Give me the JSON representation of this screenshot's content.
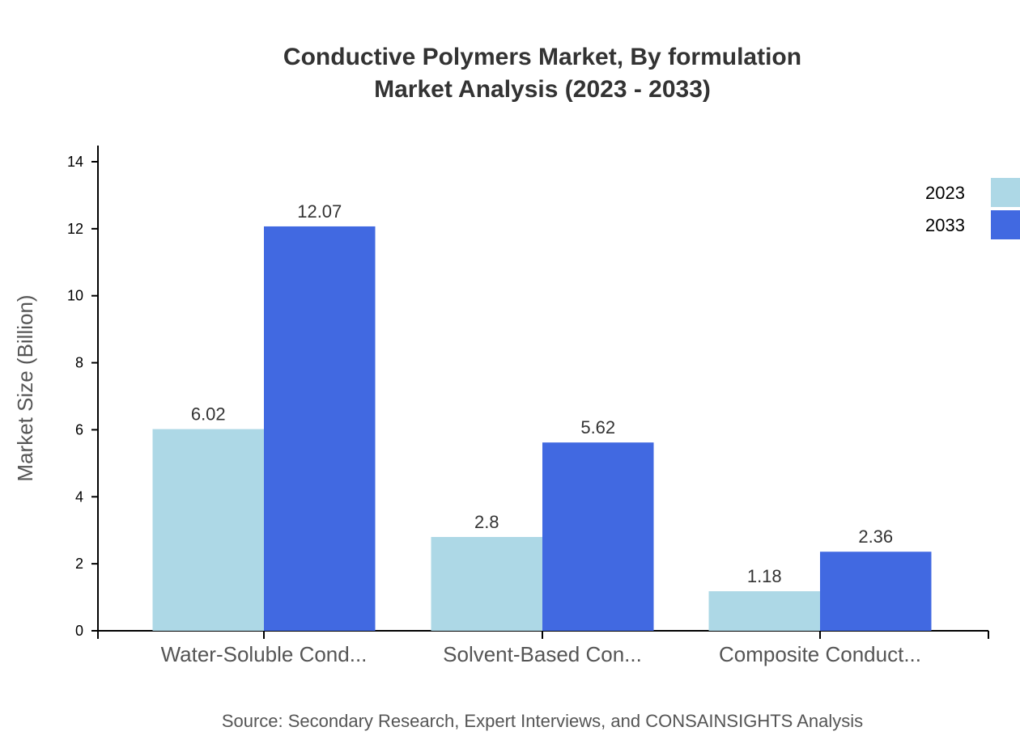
{
  "chart_data": {
    "type": "bar",
    "title": "Conductive Polymers Market, By formulation",
    "subtitle": "Market Analysis (2023 - 2033)",
    "xlabel": "",
    "ylabel": "Market Size (Billion)",
    "ylim": [
      0,
      14.5
    ],
    "yticks": [
      "0",
      "2",
      "4",
      "6",
      "8",
      "10",
      "12",
      "14"
    ],
    "categories": [
      "Water-Soluble Cond...",
      "Solvent-Based Con...",
      "Composite Conduct..."
    ],
    "series": [
      {
        "name": "2023",
        "color": "#add8e6",
        "values": [
          6.02,
          2.8,
          1.18
        ],
        "labels": [
          "6.02",
          "2.8",
          "1.18"
        ]
      },
      {
        "name": "2033",
        "color": "#4169e1",
        "values": [
          12.07,
          5.62,
          2.36
        ],
        "labels": [
          "12.07",
          "5.62",
          "2.36"
        ]
      }
    ],
    "grid": false,
    "legend_position": "top-right",
    "source": "Source: Secondary Research, Expert Interviews, and CONSAINSIGHTS Analysis"
  }
}
